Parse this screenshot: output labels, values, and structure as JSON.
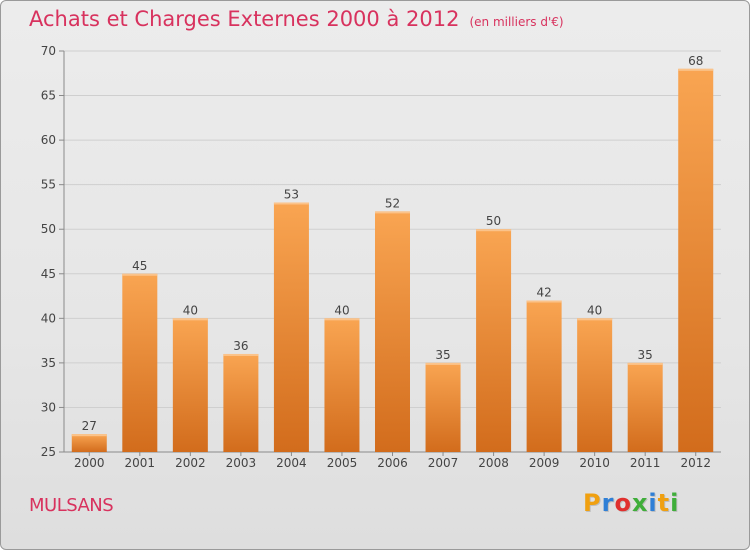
{
  "page": {
    "title": "Achats et Charges Externes 2000 à 2012",
    "unit_note": "(en milliers d'€)",
    "place": "MULSANS",
    "logo": {
      "text": "Proxiti",
      "letters": [
        {
          "ch": "P",
          "color": "#f0a010"
        },
        {
          "ch": "r",
          "color": "#2f7fd6"
        },
        {
          "ch": "o",
          "color": "#e0302e"
        },
        {
          "ch": "x",
          "color": "#3fae3a"
        },
        {
          "ch": "i",
          "color": "#2f7fd6"
        },
        {
          "ch": "t",
          "color": "#f0a010"
        },
        {
          "ch": "i",
          "color": "#3fae3a"
        }
      ]
    }
  },
  "chart_data": {
    "type": "bar",
    "title": "Achats et Charges Externes 2000 à 2012",
    "subtitle": "(en milliers d'€)",
    "xlabel": "",
    "ylabel": "",
    "categories": [
      "2000",
      "2001",
      "2002",
      "2003",
      "2004",
      "2005",
      "2006",
      "2007",
      "2008",
      "2009",
      "2010",
      "2011",
      "2012"
    ],
    "values": [
      27,
      45,
      40,
      36,
      53,
      40,
      52,
      35,
      50,
      42,
      40,
      35,
      68
    ],
    "ylim": [
      25,
      70
    ],
    "yticks": [
      25,
      30,
      35,
      40,
      45,
      50,
      55,
      60,
      65,
      70
    ],
    "grid": true,
    "colors": {
      "bar_top": "#f9a552",
      "bar_bottom": "#d26c1c",
      "text_accent": "#d8325e",
      "grid": "#cfcfcf",
      "axis": "#8a8a8a"
    }
  }
}
